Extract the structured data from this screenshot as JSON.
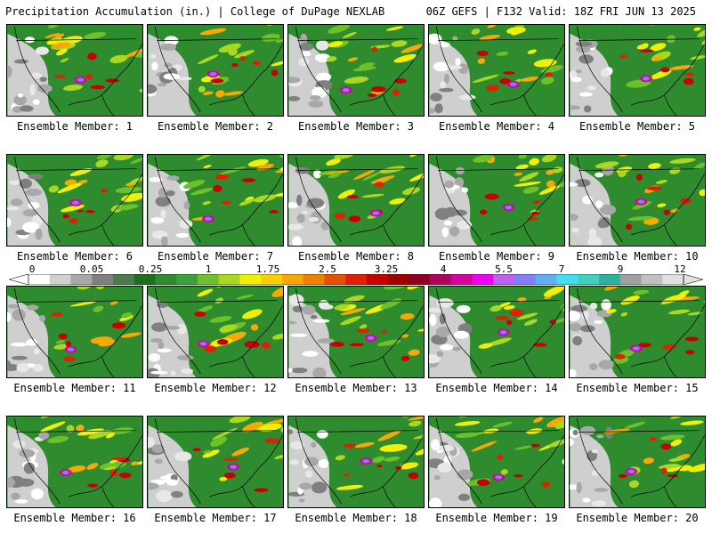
{
  "header": {
    "title_left": "Precipitation Accumulation (in.) | College of DuPage NEXLAB",
    "title_right": "06Z GEFS | F132 Valid: 18Z FRI JUN 13 2025"
  },
  "panels": [
    {
      "label": "Ensemble Member: 1"
    },
    {
      "label": "Ensemble Member: 2"
    },
    {
      "label": "Ensemble Member: 3"
    },
    {
      "label": "Ensemble Member: 4"
    },
    {
      "label": "Ensemble Member: 5"
    },
    {
      "label": "Ensemble Member: 6"
    },
    {
      "label": "Ensemble Member: 7"
    },
    {
      "label": "Ensemble Member: 8"
    },
    {
      "label": "Ensemble Member: 9"
    },
    {
      "label": "Ensemble Member: 10"
    },
    {
      "label": "Ensemble Member: 11"
    },
    {
      "label": "Ensemble Member: 12"
    },
    {
      "label": "Ensemble Member: 13"
    },
    {
      "label": "Ensemble Member: 14"
    },
    {
      "label": "Ensemble Member: 15"
    },
    {
      "label": "Ensemble Member: 16"
    },
    {
      "label": "Ensemble Member: 17"
    },
    {
      "label": "Ensemble Member: 18"
    },
    {
      "label": "Ensemble Member: 19"
    },
    {
      "label": "Ensemble Member: 20"
    }
  ],
  "colorbar": {
    "tick_labels": [
      "0",
      "0.05",
      "0.25",
      "1",
      "1.75",
      "2.5",
      "3.25",
      "4",
      "5.5",
      "7",
      "9",
      "12"
    ],
    "colors": [
      "#ffffff",
      "#d0d0d0",
      "#a8a8a8",
      "#808080",
      "#4a7d4a",
      "#1e6e1e",
      "#2e8b2e",
      "#3aa23a",
      "#6cc02a",
      "#a8d820",
      "#f0f000",
      "#f8d000",
      "#f8a800",
      "#f08000",
      "#e85000",
      "#e02000",
      "#c80000",
      "#a00000",
      "#900020",
      "#b00060",
      "#d800a0",
      "#f000f0",
      "#c060f0",
      "#8080f8",
      "#60b0f8",
      "#40e0f0",
      "#40d0c0",
      "#30b0a0",
      "#a0a0a0",
      "#c0c0c0",
      "#e0e0e0"
    ]
  }
}
